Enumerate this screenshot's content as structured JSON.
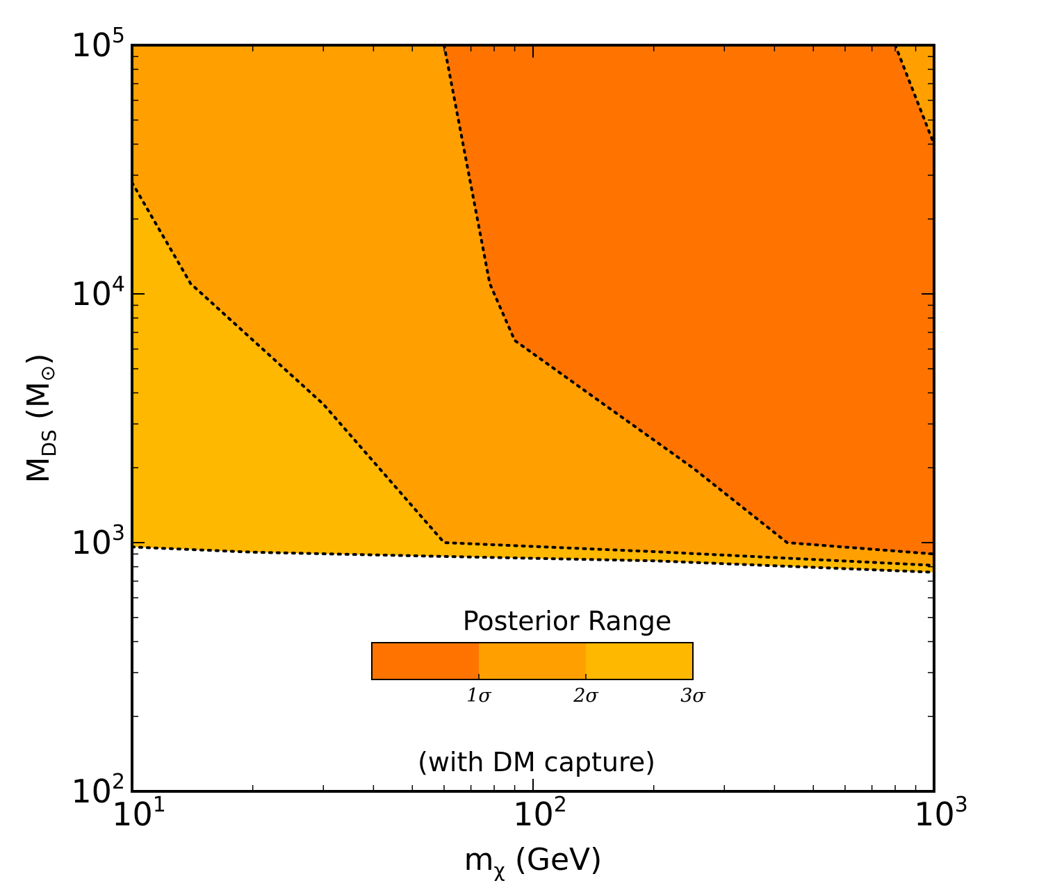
{
  "chart_data": {
    "type": "contour",
    "xscale": "log",
    "yscale": "log",
    "xlim": [
      10,
      1000
    ],
    "ylim": [
      100,
      100000
    ],
    "xlabel": {
      "main": "m",
      "sub": "χ",
      "rest": " (GeV)"
    },
    "ylabel": {
      "main": "M",
      "sub": "DS",
      "rest": " (M",
      "sym": "⊙",
      "close": ")"
    },
    "xticks": [
      {
        "base": "10",
        "exp": "1"
      },
      {
        "base": "10",
        "exp": "2"
      },
      {
        "base": "10",
        "exp": "3"
      }
    ],
    "yticks": [
      {
        "base": "10",
        "exp": "2"
      },
      {
        "base": "10",
        "exp": "3"
      },
      {
        "base": "10",
        "exp": "4"
      },
      {
        "base": "10",
        "exp": "5"
      }
    ],
    "annotation": "(with DM capture)",
    "colorbar": {
      "title": "Posterior Range",
      "colors": [
        "#ff7400",
        "#ffa000",
        "#ffb800"
      ],
      "tick_labels": [
        "1σ",
        "2σ",
        "3σ"
      ]
    },
    "regions": [
      {
        "level": "3σ",
        "color": "#ffb800",
        "boundary": [
          [
            10,
            960
          ],
          [
            20,
            915
          ],
          [
            60,
            880
          ],
          [
            200,
            845
          ],
          [
            1000,
            760
          ]
        ]
      },
      {
        "level": "2σ",
        "color": "#ffa000",
        "boundary": [
          [
            10,
            28000
          ],
          [
            14,
            11000
          ],
          [
            30,
            3600
          ],
          [
            60,
            1000
          ],
          [
            200,
            920
          ],
          [
            1000,
            810
          ]
        ]
      },
      {
        "level": "1σ",
        "color": "#ff7400",
        "boundary": [
          [
            60,
            100000
          ],
          [
            78,
            11000
          ],
          [
            90,
            6500
          ],
          [
            140,
            3900
          ],
          [
            250,
            2000
          ],
          [
            430,
            1000
          ],
          [
            1000,
            900
          ]
        ]
      },
      {
        "level": "2σ",
        "color": "#ffa000",
        "boundary": [
          [
            800,
            100000
          ],
          [
            1000,
            40000
          ]
        ]
      }
    ]
  }
}
